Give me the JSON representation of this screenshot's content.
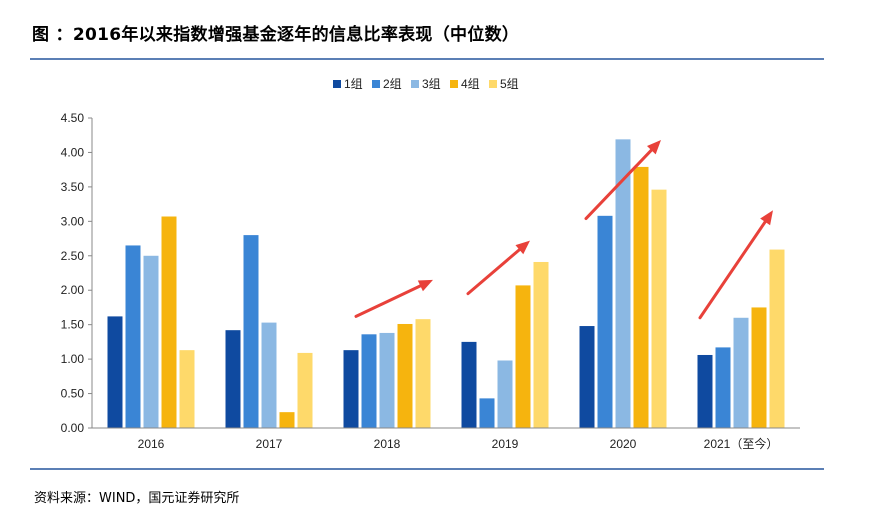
{
  "header": {
    "title": "图 ：2016年以来指数增强基金逐年的信息比率表现（中位数）"
  },
  "footer": {
    "source": "资料来源：WIND，国元证券研究所"
  },
  "colors": {
    "series": [
      "#0f4aa0",
      "#3a85d5",
      "#8bb8e3",
      "#f6b40e",
      "#fed96a"
    ],
    "arrow": "#e8413a",
    "rule": "#5b7fb5"
  },
  "chart_data": {
    "type": "bar",
    "title": "",
    "xlabel": "",
    "ylabel": "",
    "ylim": [
      0,
      4.5
    ],
    "yticks": [
      "0.00",
      "0.50",
      "1.00",
      "1.50",
      "2.00",
      "2.50",
      "3.00",
      "3.50",
      "4.00",
      "4.50"
    ],
    "categories": [
      "2016",
      "2017",
      "2018",
      "2019",
      "2020",
      "2021（至今）"
    ],
    "series": [
      {
        "name": "1组",
        "values": [
          1.62,
          1.42,
          1.13,
          1.25,
          1.48,
          1.06
        ]
      },
      {
        "name": "2组",
        "values": [
          2.65,
          2.8,
          1.36,
          0.43,
          3.08,
          1.17
        ]
      },
      {
        "name": "3组",
        "values": [
          2.5,
          1.53,
          1.38,
          0.98,
          4.19,
          1.6
        ]
      },
      {
        "name": "4组",
        "values": [
          3.07,
          0.23,
          1.51,
          2.07,
          3.79,
          1.75
        ]
      },
      {
        "name": "5组",
        "values": [
          1.13,
          1.09,
          1.58,
          2.41,
          3.46,
          2.59
        ]
      }
    ],
    "grid": false,
    "legend_position": "top-center",
    "annotations": [
      "upward trend arrows over 2018, 2019, 2020, 2021（至今）"
    ]
  }
}
